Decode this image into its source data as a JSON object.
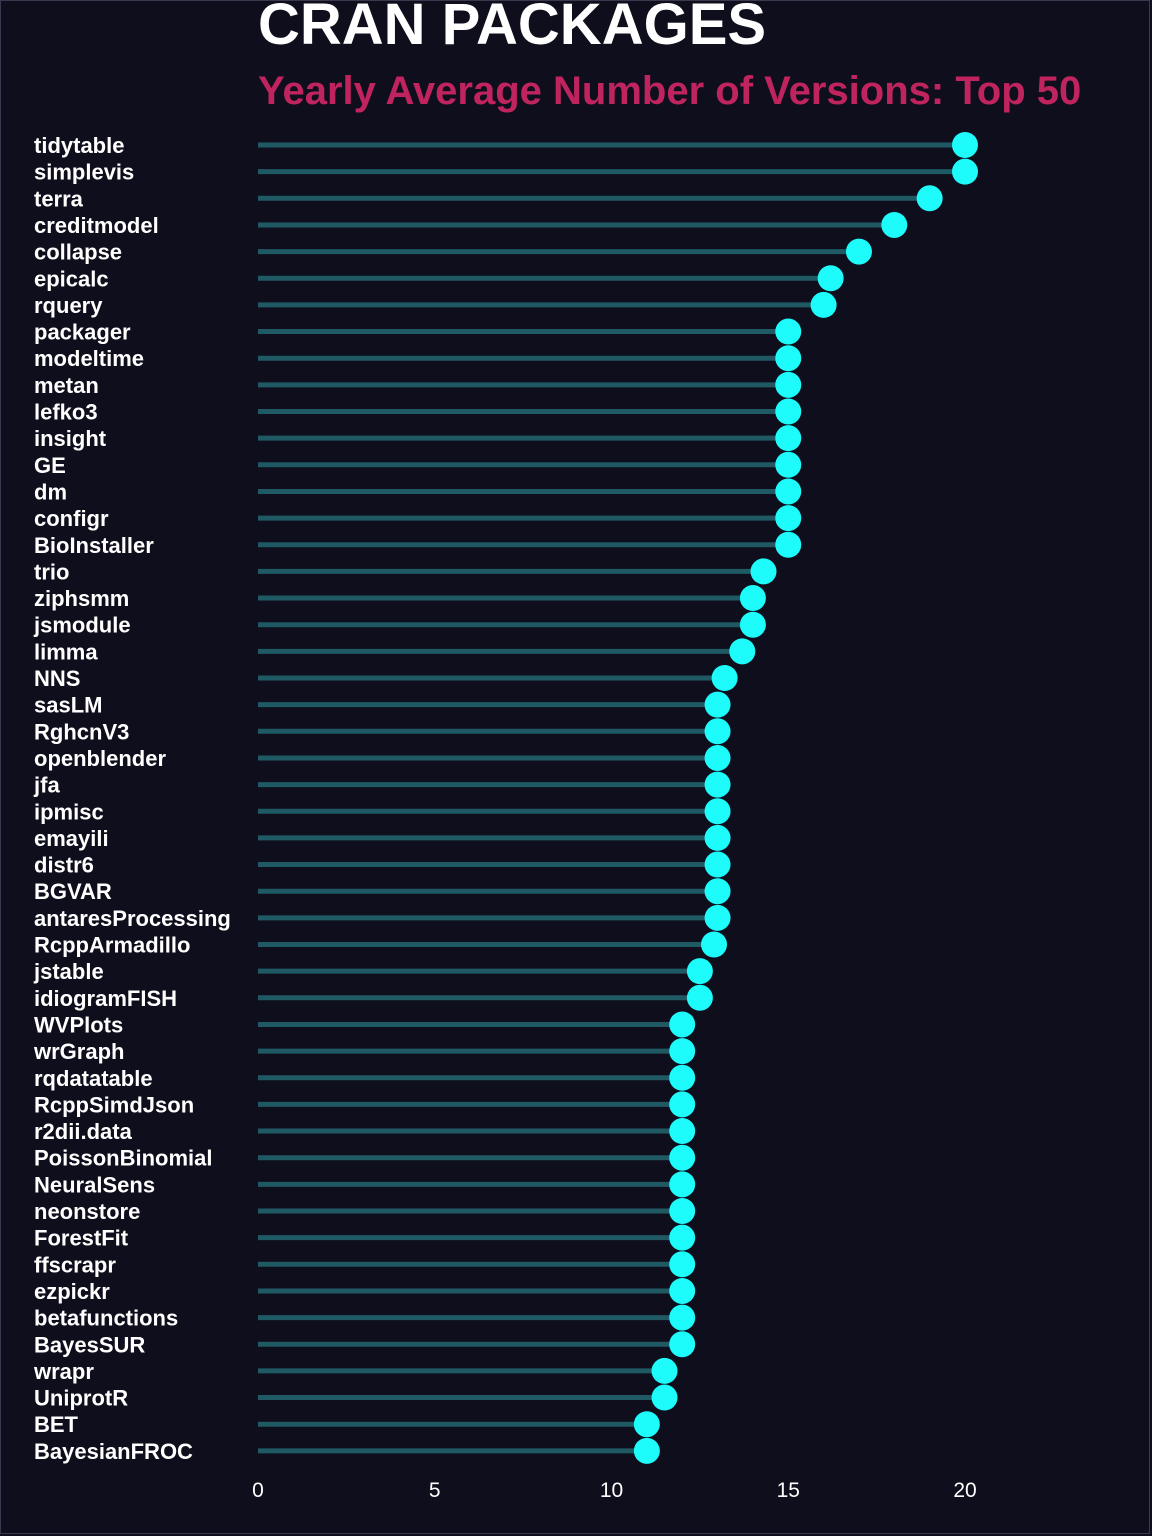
{
  "chart_data": {
    "type": "lollipop",
    "title": "CRAN PACKAGES",
    "subtitle": "Yearly Average Number of Versions: Top 50",
    "xlim": [
      0,
      25
    ],
    "x_ticks": [
      0,
      5,
      10,
      15,
      20
    ],
    "grid": false,
    "colors": {
      "background": "#0f0e1c",
      "title": "#ffffff",
      "subtitle": "#c0245f",
      "stem": "#1f5963",
      "point": "#1dfbfb",
      "text": "#ffffff"
    },
    "categories": [
      "tidytable",
      "simplevis",
      "terra",
      "creditmodel",
      "collapse",
      "epicalc",
      "rquery",
      "packager",
      "modeltime",
      "metan",
      "lefko3",
      "insight",
      "GE",
      "dm",
      "configr",
      "BioInstaller",
      "trio",
      "ziphsmm",
      "jsmodule",
      "limma",
      "NNS",
      "sasLM",
      "RghcnV3",
      "openblender",
      "jfa",
      "ipmisc",
      "emayili",
      "distr6",
      "BGVAR",
      "antaresProcessing",
      "RcppArmadillo",
      "jstable",
      "idiogramFISH",
      "WVPlots",
      "wrGraph",
      "rqdatatable",
      "RcppSimdJson",
      "r2dii.data",
      "PoissonBinomial",
      "NeuralSens",
      "neonstore",
      "ForestFit",
      "ffscrapr",
      "ezpickr",
      "betafunctions",
      "BayesSUR",
      "wrapr",
      "UniprotR",
      "BET",
      "BayesianFROC"
    ],
    "values": [
      20,
      20,
      19,
      18,
      17,
      16.2,
      16,
      15,
      15,
      15,
      15,
      15,
      15,
      15,
      15,
      15,
      14.3,
      14,
      14,
      13.7,
      13.2,
      13,
      13,
      13,
      13,
      13,
      13,
      13,
      13,
      13,
      12.9,
      12.5,
      12.5,
      12,
      12,
      12,
      12,
      12,
      12,
      12,
      12,
      12,
      12,
      12,
      12,
      12,
      11.5,
      11.5,
      11,
      11
    ]
  }
}
